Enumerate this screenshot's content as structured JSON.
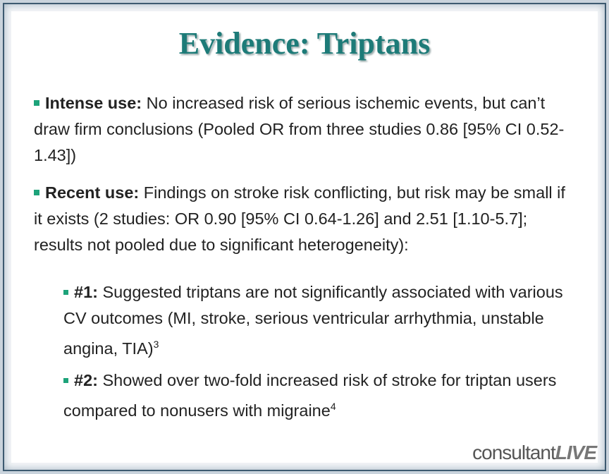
{
  "title": "Evidence: Triptans",
  "bullets": [
    {
      "lead": "Intense use:",
      "text": "No increased risk of serious ischemic events, but can’t draw firm conclusions (Pooled OR from three studies 0.86  [95% CI 0.52-1.43])"
    },
    {
      "lead": "Recent use:",
      "text": "Findings on stroke risk conflicting, but risk may be small if it exists (2 studies: OR 0.90 [95% CI 0.64-1.26] and 2.51 [1.10-5.7]; results not pooled due to significant heterogeneity):"
    }
  ],
  "sub_bullets": [
    {
      "lead": "#1:",
      "text": "Suggested triptans are not significantly associated with various CV outcomes (MI, stroke, serious ventricular arrhythmia, unstable angina, TIA)",
      "ref": "3"
    },
    {
      "lead": "#2:",
      "text": "Showed over two-fold increased risk of stroke for triptan users compared to nonusers with migraine",
      "ref": "4"
    }
  ],
  "logo": {
    "brand": "consultant",
    "suffix": "LIVE"
  }
}
